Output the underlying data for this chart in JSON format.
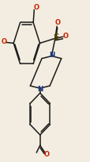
{
  "bg_color": "#f2ede0",
  "bond_color": "#1a1a1a",
  "bond_width": 1.1,
  "dbo": 0.012,
  "fig_width": 1.15,
  "fig_height": 2.04,
  "dpi": 100,
  "xlim": [
    0,
    1
  ],
  "ylim": [
    0,
    1
  ]
}
